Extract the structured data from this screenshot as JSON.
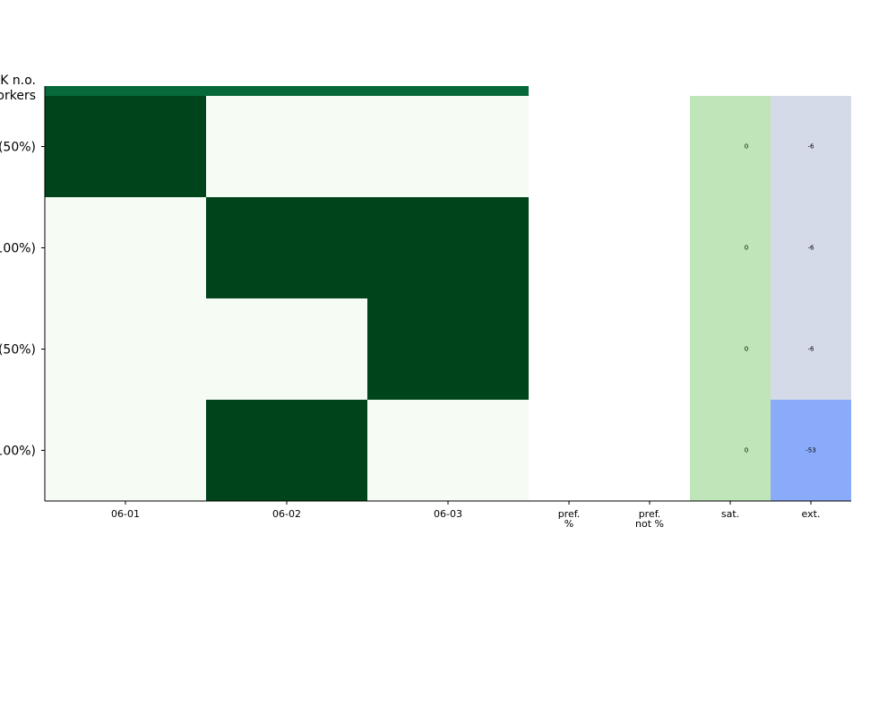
{
  "chart_data": {
    "type": "heatmap",
    "title": "",
    "corner_label_lines": [
      "K n.o.",
      "orkers"
    ],
    "columns": [
      "06-01",
      "06-02",
      "06-03"
    ],
    "rows": [
      "(50%)",
      "100%)",
      "(50%)",
      "100%)"
    ],
    "assignments": [
      [
        1,
        0,
        0
      ],
      [
        0,
        1,
        1
      ],
      [
        0,
        0,
        1
      ],
      [
        0,
        1,
        0
      ]
    ],
    "top_bar_color": "#07693a",
    "assigned_color": "#00441b",
    "unassigned_color": "#f6fbf4",
    "extra_columns": [
      {
        "label_lines": [
          "pref.",
          "%"
        ],
        "values": [
          null,
          null,
          null,
          null
        ],
        "colors": [
          "#ffffff",
          "#ffffff",
          "#ffffff",
          "#ffffff"
        ]
      },
      {
        "label_lines": [
          "pref.",
          "not %"
        ],
        "values": [
          null,
          null,
          null,
          null
        ],
        "colors": [
          "#ffffff",
          "#ffffff",
          "#ffffff",
          "#ffffff"
        ]
      },
      {
        "label_lines": [
          "sat."
        ],
        "values": [
          "0",
          "0",
          "0",
          "0"
        ],
        "colors": [
          "#c0e5b8",
          "#c0e5b8",
          "#c0e5b8",
          "#c0e5b8"
        ]
      },
      {
        "label_lines": [
          "ext."
        ],
        "values": [
          "-6",
          "-6",
          "-6",
          "-53"
        ],
        "colors": [
          "#d4dae7",
          "#d4dae7",
          "#d4dae7",
          "#8aaafa"
        ]
      }
    ]
  }
}
